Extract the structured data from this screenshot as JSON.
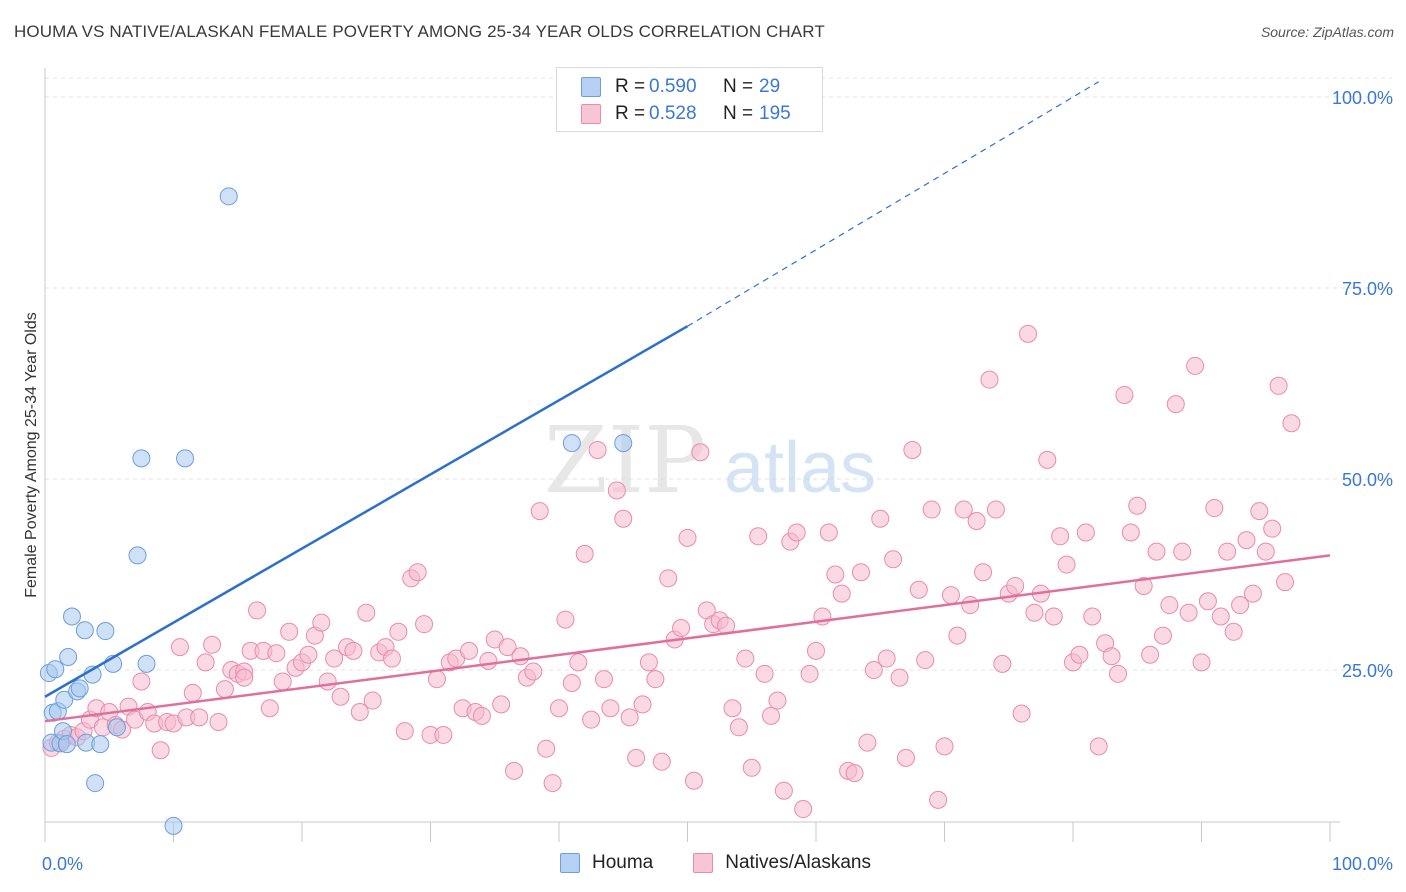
{
  "header": {
    "title": "HOUMA VS NATIVE/ALASKAN FEMALE POVERTY AMONG 25-34 YEAR OLDS CORRELATION CHART",
    "source": "Source: ZipAtlas.com"
  },
  "watermark": {
    "zip": "ZIP",
    "atlas": "atlas"
  },
  "colors": {
    "houma_fill": "#a8c8f0",
    "houma_stroke": "#6b9fdc",
    "houma_line": "#2d6fcf",
    "natives_fill": "#f7b9cd",
    "natives_stroke": "#ea8bab",
    "natives_line": "#e0709a",
    "tick_label": "#3b78d4",
    "grid": "#e2e2e2"
  },
  "legend": {
    "rows": [
      {
        "r_label": "R =",
        "r_value": "0.590",
        "n_label": "N =",
        "n_value": "29"
      },
      {
        "r_label": "R =",
        "r_value": "0.528",
        "n_label": "N =",
        "n_value": "195"
      }
    ]
  },
  "bottom_legend": [
    "Houma",
    "Natives/Alaskans"
  ],
  "chart_data": {
    "type": "scatter",
    "title": "HOUMA VS NATIVE/ALASKAN FEMALE POVERTY AMONG 25-34 YEAR OLDS CORRELATION CHART",
    "xlabel": "",
    "ylabel": "Female Poverty Among 25-34 Year Olds",
    "xlim": [
      0,
      100
    ],
    "ylim": [
      0,
      102
    ],
    "x_tick_labels": [
      "0.0%",
      "100.0%"
    ],
    "y_tick_labels": [
      "25.0%",
      "50.0%",
      "75.0%",
      "100.0%"
    ],
    "y_ticks": [
      25,
      50,
      75,
      100
    ],
    "grid": true,
    "legend_position": "top-center",
    "series": [
      {
        "name": "Houma",
        "points": [
          [
            0.3,
            24.6
          ],
          [
            0.5,
            15.5
          ],
          [
            0.6,
            19.4
          ],
          [
            0.8,
            25.1
          ],
          [
            1.0,
            19.6
          ],
          [
            1.2,
            15.4
          ],
          [
            1.4,
            17.0
          ],
          [
            1.5,
            21.1
          ],
          [
            1.7,
            15.3
          ],
          [
            1.8,
            26.7
          ],
          [
            2.1,
            32.0
          ],
          [
            2.5,
            22.2
          ],
          [
            2.7,
            22.6
          ],
          [
            3.1,
            30.2
          ],
          [
            3.2,
            15.5
          ],
          [
            3.7,
            24.4
          ],
          [
            3.9,
            10.2
          ],
          [
            4.3,
            15.3
          ],
          [
            4.7,
            30.1
          ],
          [
            5.3,
            25.8
          ],
          [
            5.6,
            17.5
          ],
          [
            7.2,
            40.0
          ],
          [
            7.5,
            52.7
          ],
          [
            7.9,
            25.8
          ],
          [
            10.0,
            4.6
          ],
          [
            10.9,
            52.7
          ],
          [
            14.3,
            87.0
          ],
          [
            41.0,
            54.7
          ],
          [
            45.0,
            54.7
          ]
        ],
        "trend": {
          "x": [
            0,
            50
          ],
          "y": [
            21.5,
            70.0
          ],
          "dashed_to": [
            82,
            102
          ]
        }
      },
      {
        "name": "Natives/Alaskans",
        "points": [
          [
            0.5,
            14.8
          ],
          [
            1.0,
            15.5
          ],
          [
            1.5,
            16.0
          ],
          [
            2.0,
            16.5
          ],
          [
            2.5,
            16.2
          ],
          [
            3.0,
            17.0
          ],
          [
            3.5,
            18.5
          ],
          [
            4.0,
            20.0
          ],
          [
            4.5,
            17.5
          ],
          [
            5.0,
            19.5
          ],
          [
            5.5,
            17.8
          ],
          [
            6.0,
            17.2
          ],
          [
            6.5,
            20.2
          ],
          [
            7.0,
            18.5
          ],
          [
            7.5,
            23.5
          ],
          [
            8.0,
            19.5
          ],
          [
            8.5,
            18.0
          ],
          [
            9.0,
            14.5
          ],
          [
            9.5,
            18.2
          ],
          [
            10.0,
            18.0
          ],
          [
            10.5,
            28.0
          ],
          [
            11.0,
            18.8
          ],
          [
            11.5,
            22.0
          ],
          [
            12.0,
            18.8
          ],
          [
            12.5,
            26.0
          ],
          [
            13.0,
            28.3
          ],
          [
            13.5,
            18.2
          ],
          [
            14.0,
            22.5
          ],
          [
            14.5,
            25.0
          ],
          [
            15.0,
            24.5
          ],
          [
            15.5,
            24.8
          ],
          [
            16.0,
            27.5
          ],
          [
            16.5,
            32.8
          ],
          [
            17.0,
            27.5
          ],
          [
            17.5,
            20.0
          ],
          [
            18.0,
            27.2
          ],
          [
            18.5,
            23.5
          ],
          [
            19.0,
            30.0
          ],
          [
            19.5,
            25.3
          ],
          [
            20.0,
            26.0
          ],
          [
            20.5,
            27.0
          ],
          [
            21.0,
            29.5
          ],
          [
            21.5,
            31.2
          ],
          [
            22.0,
            23.5
          ],
          [
            22.5,
            26.5
          ],
          [
            23.0,
            21.5
          ],
          [
            23.5,
            28.0
          ],
          [
            24.0,
            27.5
          ],
          [
            24.5,
            19.5
          ],
          [
            25.0,
            32.5
          ],
          [
            25.5,
            21.0
          ],
          [
            26.0,
            27.3
          ],
          [
            26.5,
            28.0
          ],
          [
            27.0,
            26.5
          ],
          [
            27.5,
            30.0
          ],
          [
            28.0,
            17.0
          ],
          [
            28.5,
            37.0
          ],
          [
            29.0,
            37.8
          ],
          [
            29.5,
            31.0
          ],
          [
            30.0,
            16.5
          ],
          [
            30.5,
            23.8
          ],
          [
            31.0,
            16.5
          ],
          [
            31.5,
            26.0
          ],
          [
            32.0,
            26.5
          ],
          [
            32.5,
            20.0
          ],
          [
            33.0,
            27.5
          ],
          [
            33.5,
            19.5
          ],
          [
            34.0,
            19.0
          ],
          [
            34.5,
            26.2
          ],
          [
            35.0,
            29.0
          ],
          [
            35.5,
            20.5
          ],
          [
            36.0,
            28.0
          ],
          [
            36.5,
            11.8
          ],
          [
            37.0,
            26.8
          ],
          [
            37.5,
            24.0
          ],
          [
            38.0,
            24.8
          ],
          [
            38.5,
            45.8
          ],
          [
            39.0,
            14.7
          ],
          [
            39.5,
            10.2
          ],
          [
            40.0,
            20.0
          ],
          [
            40.5,
            31.6
          ],
          [
            41.0,
            23.3
          ],
          [
            41.5,
            26.0
          ],
          [
            42.0,
            40.2
          ],
          [
            42.5,
            18.5
          ],
          [
            43.0,
            53.8
          ],
          [
            43.5,
            23.8
          ],
          [
            44.0,
            20.0
          ],
          [
            44.5,
            48.5
          ],
          [
            45.0,
            44.8
          ],
          [
            45.5,
            18.8
          ],
          [
            46.0,
            13.5
          ],
          [
            46.5,
            20.5
          ],
          [
            47.0,
            26.0
          ],
          [
            47.5,
            23.8
          ],
          [
            48.0,
            13.0
          ],
          [
            48.5,
            37.0
          ],
          [
            49.0,
            29.0
          ],
          [
            49.5,
            30.5
          ],
          [
            50.0,
            42.3
          ],
          [
            50.5,
            10.5
          ],
          [
            51.0,
            53.5
          ],
          [
            51.5,
            32.8
          ],
          [
            52.0,
            31.0
          ],
          [
            52.5,
            31.5
          ],
          [
            53.0,
            30.8
          ],
          [
            53.5,
            20.0
          ],
          [
            54.0,
            17.5
          ],
          [
            54.5,
            26.5
          ],
          [
            55.0,
            12.2
          ],
          [
            55.5,
            42.5
          ],
          [
            56.0,
            24.5
          ],
          [
            56.5,
            19.0
          ],
          [
            57.0,
            21.0
          ],
          [
            57.5,
            9.2
          ],
          [
            58.0,
            41.8
          ],
          [
            58.5,
            43.0
          ],
          [
            59.0,
            6.8
          ],
          [
            59.5,
            24.5
          ],
          [
            60.0,
            27.5
          ],
          [
            60.5,
            32.0
          ],
          [
            61.0,
            43.0
          ],
          [
            61.5,
            37.5
          ],
          [
            62.0,
            35.0
          ],
          [
            62.5,
            11.8
          ],
          [
            63.0,
            11.5
          ],
          [
            63.5,
            37.8
          ],
          [
            64.0,
            15.5
          ],
          [
            64.5,
            25.0
          ],
          [
            65.0,
            44.8
          ],
          [
            65.5,
            26.5
          ],
          [
            66.0,
            39.5
          ],
          [
            66.5,
            24.0
          ],
          [
            67.0,
            13.5
          ],
          [
            67.5,
            53.8
          ],
          [
            68.0,
            35.5
          ],
          [
            68.5,
            26.3
          ],
          [
            69.0,
            46.0
          ],
          [
            69.5,
            8.0
          ],
          [
            70.0,
            15.0
          ],
          [
            70.5,
            34.8
          ],
          [
            71.0,
            29.5
          ],
          [
            71.5,
            46.0
          ],
          [
            72.0,
            33.5
          ],
          [
            72.5,
            44.5
          ],
          [
            73.0,
            37.8
          ],
          [
            73.5,
            63.0
          ],
          [
            74.0,
            46.0
          ],
          [
            74.5,
            25.8
          ],
          [
            75.0,
            35.0
          ],
          [
            75.5,
            36.0
          ],
          [
            76.0,
            19.3
          ],
          [
            76.5,
            69.0
          ],
          [
            77.0,
            32.5
          ],
          [
            77.5,
            35.0
          ],
          [
            78.0,
            52.5
          ],
          [
            78.5,
            32.0
          ],
          [
            79.0,
            42.5
          ],
          [
            79.5,
            38.8
          ],
          [
            80.0,
            26.0
          ],
          [
            80.5,
            27.0
          ],
          [
            81.0,
            43.0
          ],
          [
            81.5,
            32.0
          ],
          [
            82.0,
            15.0
          ],
          [
            82.5,
            28.5
          ],
          [
            83.0,
            26.8
          ],
          [
            83.5,
            24.5
          ],
          [
            84.0,
            61.0
          ],
          [
            84.5,
            43.0
          ],
          [
            85.0,
            46.5
          ],
          [
            85.5,
            36.0
          ],
          [
            86.0,
            27.0
          ],
          [
            86.5,
            40.5
          ],
          [
            87.0,
            29.5
          ],
          [
            87.5,
            33.5
          ],
          [
            88.0,
            59.8
          ],
          [
            88.5,
            40.5
          ],
          [
            89.0,
            32.5
          ],
          [
            89.5,
            64.8
          ],
          [
            90.0,
            26.0
          ],
          [
            90.5,
            34.0
          ],
          [
            91.0,
            46.2
          ],
          [
            91.5,
            32.0
          ],
          [
            92.0,
            40.5
          ],
          [
            92.5,
            30.0
          ],
          [
            93.0,
            33.5
          ],
          [
            93.5,
            42.0
          ],
          [
            94.0,
            35.0
          ],
          [
            94.5,
            45.8
          ],
          [
            95.0,
            40.5
          ],
          [
            95.5,
            43.5
          ],
          [
            96.0,
            62.2
          ],
          [
            96.5,
            36.5
          ],
          [
            97.0,
            57.3
          ],
          [
            15.5,
            24.0
          ]
        ],
        "trend": {
          "x": [
            0,
            100
          ],
          "y": [
            18.3,
            40.0
          ]
        }
      }
    ]
  }
}
